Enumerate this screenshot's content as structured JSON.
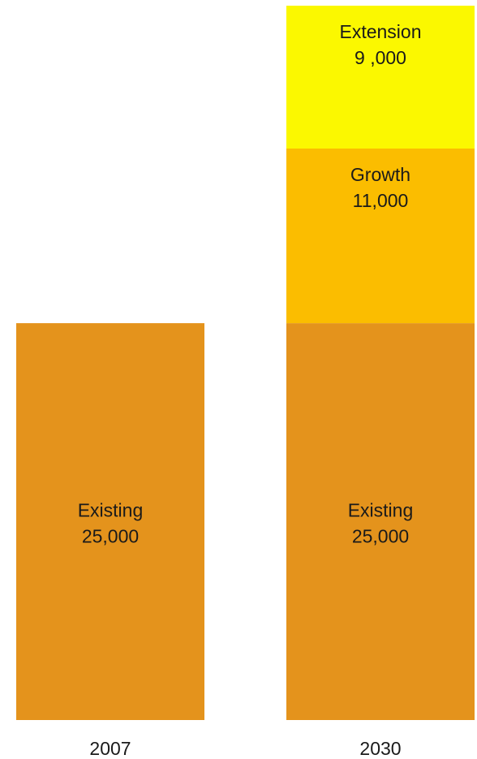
{
  "chart_data": {
    "type": "bar",
    "stacked": true,
    "title": "",
    "xlabel": "",
    "ylabel": "",
    "categories": [
      "2007",
      "2030"
    ],
    "ylim": [
      0,
      45000
    ],
    "grid": false,
    "series": [
      {
        "name": "Existing",
        "values": [
          25000,
          25000
        ],
        "value_labels": [
          "25,000",
          "25,000"
        ],
        "color": "#E4931C"
      },
      {
        "name": "Growth",
        "values": [
          0,
          11000
        ],
        "value_labels": [
          "",
          "11,000"
        ],
        "color": "#FBBD00"
      },
      {
        "name": "Extension",
        "values": [
          0,
          9000
        ],
        "value_labels": [
          "",
          "9 ,000"
        ],
        "color": "#FBF800"
      }
    ]
  }
}
